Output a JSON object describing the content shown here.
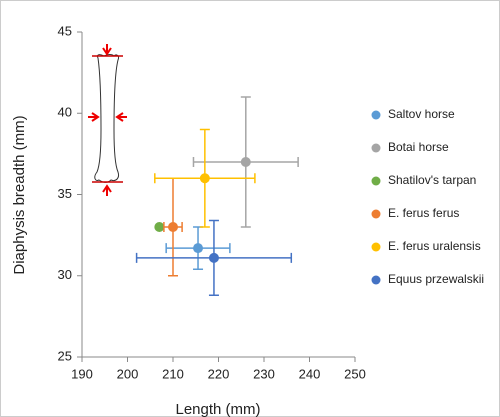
{
  "chart_data": {
    "type": "scatter",
    "xlabel": "Length (mm)",
    "ylabel": "Diaphysis breadth (mm)",
    "xlim": [
      190,
      250
    ],
    "xticks": [
      190,
      200,
      210,
      220,
      230,
      240,
      250
    ],
    "ylim": [
      25,
      45
    ],
    "yticks": [
      25,
      30,
      35,
      40,
      45
    ],
    "grid": false,
    "legend": "right",
    "series": [
      {
        "name": "Saltov horse",
        "color": "#5b9bd5",
        "x": [
          215.5
        ],
        "y": [
          31.7
        ],
        "xerr": [
          7
        ],
        "yerr": [
          1.3
        ]
      },
      {
        "name": "Botai horse",
        "color": "#a5a5a5",
        "x": [
          226
        ],
        "y": [
          37
        ],
        "xerr": [
          11.5
        ],
        "yerr": [
          4
        ]
      },
      {
        "name": "Shatilov's tarpan",
        "color": "#70ad47",
        "x": [
          207
        ],
        "y": [
          33
        ]
      },
      {
        "name": "E. ferus ferus",
        "color": "#ed7d31",
        "x": [
          210
        ],
        "y": [
          33
        ],
        "xerr": [
          2
        ],
        "yerr": [
          3
        ]
      },
      {
        "name": "E. ferus uralensis",
        "color": "#ffc000",
        "x": [
          217
        ],
        "y": [
          36
        ],
        "xerr": [
          11
        ],
        "yerr": [
          3
        ]
      },
      {
        "name": "Equus przewalskii",
        "color": "#4472c4",
        "x": [
          219
        ],
        "y": [
          31.1
        ],
        "xerr": [
          17
        ],
        "yerr": [
          2.3
        ]
      }
    ]
  }
}
